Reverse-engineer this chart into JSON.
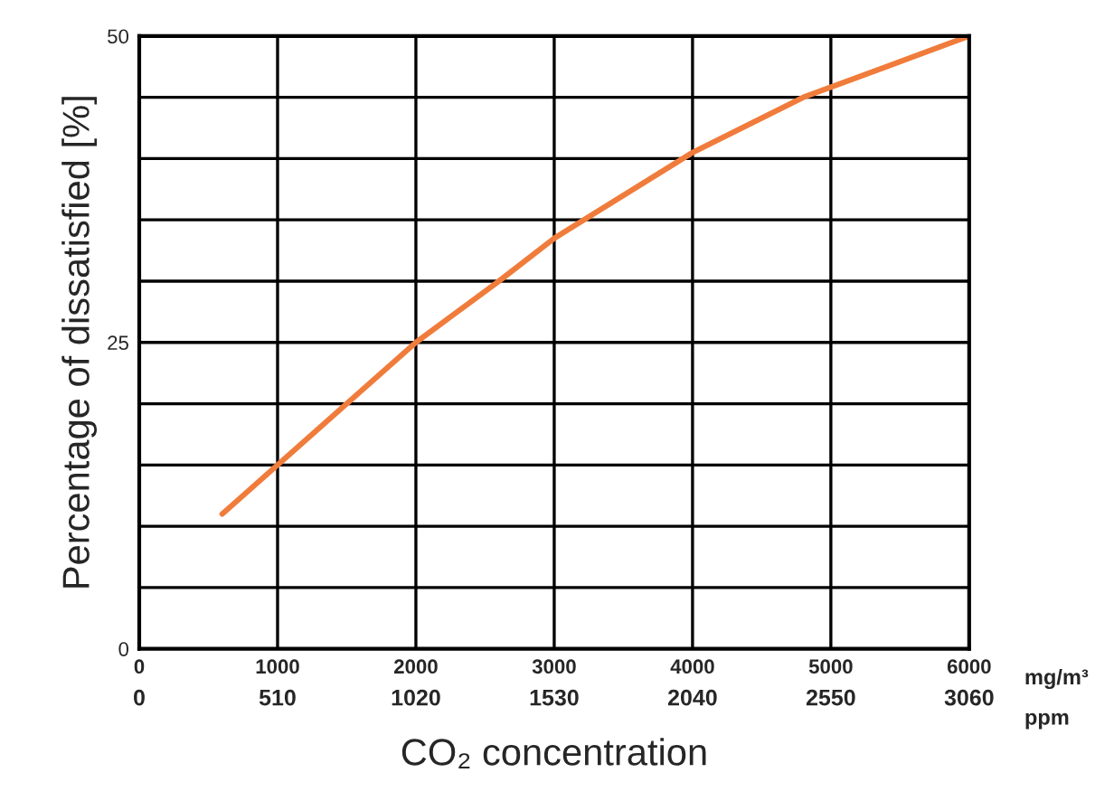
{
  "chart_data": {
    "type": "line",
    "xlabel": "CO₂ concentration",
    "ylabel": "Percentage of dissatisfied [%]",
    "x": [
      600,
      1000,
      1500,
      2000,
      2600,
      3000,
      3500,
      4000,
      4800,
      5400,
      6000
    ],
    "series": [
      {
        "color": "#f07c3c",
        "values": [
          11,
          15,
          20,
          25,
          30,
          33.5,
          37,
          40.5,
          45,
          47.5,
          50
        ]
      }
    ],
    "xlim": [
      0,
      6000
    ],
    "xticks": [
      0,
      1000,
      2000,
      3000,
      4000,
      5000,
      6000
    ],
    "x2lim": [
      0,
      3060
    ],
    "x2ticks": [
      0,
      510,
      1020,
      1530,
      2040,
      2550,
      3060
    ],
    "ylim": [
      0,
      50
    ],
    "yticks": [
      0,
      {
        "value": 5,
        "label": null
      },
      {
        "value": 10,
        "label": null
      },
      {
        "value": 15,
        "label": null
      },
      {
        "value": 20,
        "label": null
      },
      25,
      {
        "value": 30,
        "label": null
      },
      {
        "value": 35,
        "label": null
      },
      {
        "value": 40,
        "label": null
      },
      {
        "value": 45,
        "label": null
      },
      50
    ],
    "grid": true,
    "marker": "none",
    "line_style": "solid",
    "annotations": [
      "mg/m³",
      "ppm"
    ]
  }
}
